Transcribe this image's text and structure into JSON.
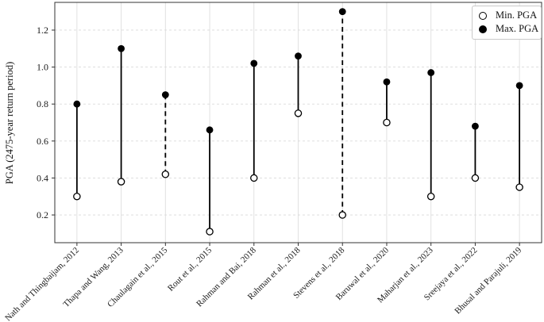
{
  "chart_data": {
    "type": "scatter",
    "variant": "min-max vertical range (stem) plot",
    "title": "",
    "xlabel": "",
    "ylabel": "PGA (2475-year return period)",
    "categories": [
      "Nath and Thingbaijam, 2012",
      "Thapa and Wang, 2013",
      "Chaulagain et al., 2015",
      "Rout et al., 2015",
      "Rahman and Bai, 2018",
      "Rahman et al., 2018",
      "Stevens et al., 2018",
      "Baruwal et al., 2020",
      "Maharjan et al., 2023",
      "Sreejaya et al., 2022",
      "Bhusal and Parajuli, 2019"
    ],
    "series": [
      {
        "name": "Min. PGA",
        "marker": "open-circle",
        "values": [
          0.3,
          0.38,
          0.42,
          0.11,
          0.4,
          0.75,
          0.2,
          0.7,
          0.3,
          0.4,
          0.35
        ]
      },
      {
        "name": "Max. PGA",
        "marker": "filled-circle",
        "values": [
          0.8,
          1.1,
          0.85,
          0.66,
          1.02,
          1.06,
          1.3,
          0.92,
          0.97,
          0.68,
          0.9
        ]
      }
    ],
    "connector_styles": [
      "solid",
      "solid",
      "dashed",
      "solid",
      "solid",
      "solid",
      "dashed",
      "solid",
      "solid",
      "solid",
      "solid"
    ],
    "yticks": [
      "0.2",
      "0.4",
      "0.6",
      "0.8",
      "1.0",
      "1.2"
    ],
    "ylim": [
      0.05,
      1.35
    ],
    "grid": {
      "horizontal": "dashed",
      "vertical": "solid"
    },
    "legend": {
      "position": "top-right"
    }
  },
  "colors": {
    "marker": "#000000",
    "stem": "#000000",
    "grid_horizontal": "#d9d9d9",
    "grid_vertical": "#dedede",
    "spine": "#333333",
    "tick_label": "#1a1a1a",
    "background": "#ffffff",
    "legend_border": "#c9c9c9"
  }
}
